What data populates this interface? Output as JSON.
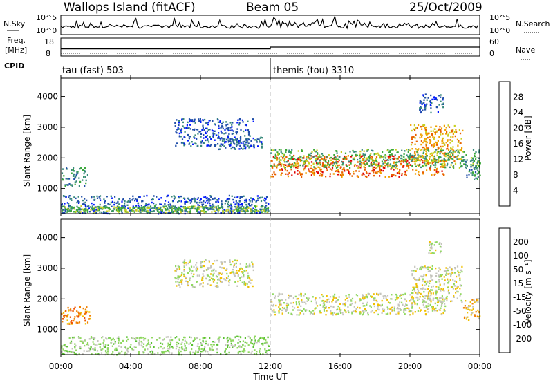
{
  "header": {
    "station": "Wallops Island (fitACF)",
    "beam": "Beam 05",
    "date": "25/Oct/2009"
  },
  "top_panels": {
    "nsky_label": "N.Sky",
    "nsky_ticks": [
      "10^5",
      "10^0"
    ],
    "nsearch_label": "N.Search",
    "nsearch_ticks": [
      "10^5",
      "10^0"
    ],
    "freq_label_1": "Freq.",
    "freq_label_2": "[MHz]",
    "freq_ticks": [
      "18",
      "8"
    ],
    "nave_label": "Nave",
    "nave_ticks": [
      "60",
      "0"
    ],
    "cpid_label": "CPID",
    "cpid_segments": [
      {
        "name": "tau (fast) 503",
        "start_hour": 0,
        "end_hour": 12
      },
      {
        "name": "themis (tou) 3310",
        "start_hour": 12,
        "end_hour": 24
      }
    ],
    "freq_steps": [
      {
        "start_hour": 0,
        "end_hour": 12,
        "value": 12
      },
      {
        "start_hour": 12,
        "end_hour": 24,
        "value": 13
      }
    ],
    "nave_level": 10
  },
  "x_axis": {
    "label": "Time UT",
    "ticks": [
      "00:00",
      "04:00",
      "08:00",
      "12:00",
      "16:00",
      "20:00",
      "00:00"
    ],
    "range_hours": [
      0,
      24
    ]
  },
  "power_panel": {
    "ylabel": "Slant Range [km]",
    "yticks": [
      "4000",
      "3000",
      "2000",
      "1000"
    ],
    "colorbar_label": "Power [dB]",
    "colorbar_ticks": [
      "28",
      "24",
      "20",
      "16",
      "12",
      "8",
      "4"
    ],
    "colors": [
      "#0018ff",
      "#204ea8",
      "#3a8a7c",
      "#3aa83a",
      "#c8d020",
      "#f0a000",
      "#e86000",
      "#e00000"
    ]
  },
  "velocity_panel": {
    "ylabel": "Slant Range [km]",
    "yticks": [
      "4000",
      "3000",
      "2000",
      "1000"
    ],
    "colorbar_label": "Velocity [m s⁻¹]",
    "colorbar_ticks": [
      "200",
      "100",
      "50",
      "15",
      "-15",
      "-50",
      "-100",
      "-200"
    ],
    "colors": [
      "#1020a0",
      "#2a7a3a",
      "#58c030",
      "#90d860",
      "#c4c4bc",
      "#f0c000",
      "#f08000",
      "#f05000",
      "#e00000"
    ]
  },
  "chart_data": {
    "type": "heatmap",
    "x_unit": "hours UT",
    "y_unit": "km",
    "xlim": [
      0,
      24
    ],
    "ylim": [
      180,
      4600
    ],
    "power_bands": [
      {
        "t0": 0.0,
        "t1": 11.9,
        "r0": 200,
        "r1": 800,
        "level": 1
      },
      {
        "t0": 0.0,
        "t1": 11.9,
        "r0": 250,
        "r1": 450,
        "level": 3
      },
      {
        "t0": 0.0,
        "t1": 1.5,
        "r0": 1100,
        "r1": 1700,
        "level": 2
      },
      {
        "t0": 6.5,
        "t1": 11.0,
        "r0": 2400,
        "r1": 3300,
        "level": 1
      },
      {
        "t0": 9.0,
        "t1": 11.5,
        "r0": 2300,
        "r1": 2700,
        "level": 1
      },
      {
        "t0": 12.0,
        "t1": 22.0,
        "r0": 1400,
        "r1": 2100,
        "level": 6
      },
      {
        "t0": 20.0,
        "t1": 23.0,
        "r0": 1900,
        "r1": 3100,
        "level": 5
      },
      {
        "t0": 12.0,
        "t1": 24.0,
        "r0": 1700,
        "r1": 2300,
        "level": 3
      },
      {
        "t0": 20.5,
        "t1": 22.0,
        "r0": 3500,
        "r1": 4100,
        "level": 1
      },
      {
        "t0": 23.0,
        "t1": 24.0,
        "r0": 1300,
        "r1": 2000,
        "level": 2
      }
    ],
    "velocity_bands": [
      {
        "t0": 0.0,
        "t1": 11.9,
        "r0": 200,
        "r1": 800,
        "level": 3
      },
      {
        "t0": 0.0,
        "t1": 1.7,
        "r0": 1200,
        "r1": 1800,
        "level": 6
      },
      {
        "t0": 6.5,
        "t1": 11.0,
        "r0": 2400,
        "r1": 3300,
        "level": 4
      },
      {
        "t0": 12.0,
        "t1": 22.0,
        "r0": 1500,
        "r1": 2200,
        "level": 4
      },
      {
        "t0": 20.0,
        "t1": 23.0,
        "r0": 1900,
        "r1": 3100,
        "level": 4
      },
      {
        "t0": 23.0,
        "t1": 24.0,
        "r0": 1300,
        "r1": 2000,
        "level": 5
      },
      {
        "t0": 21.0,
        "t1": 21.8,
        "r0": 3500,
        "r1": 3900,
        "level": 4
      }
    ]
  }
}
